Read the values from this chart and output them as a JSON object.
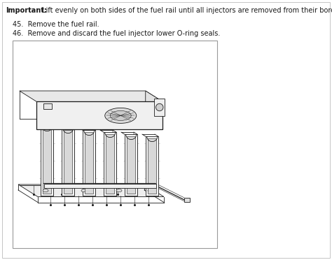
{
  "important_bold": "Important:",
  "important_rest": " Lift evenly on both sides of the fuel rail until all injectors are removed from their bores.",
  "step_45": "45.  Remove the fuel rail.",
  "step_46": "46.  Remove and discard the fuel injector lower O-ring seals.",
  "bg_color": "#ffffff",
  "text_color": "#000000",
  "gray_border": "#aaaaaa",
  "dark": "#1a1a1a",
  "fig_width": 4.74,
  "fig_height": 3.72,
  "dpi": 100
}
